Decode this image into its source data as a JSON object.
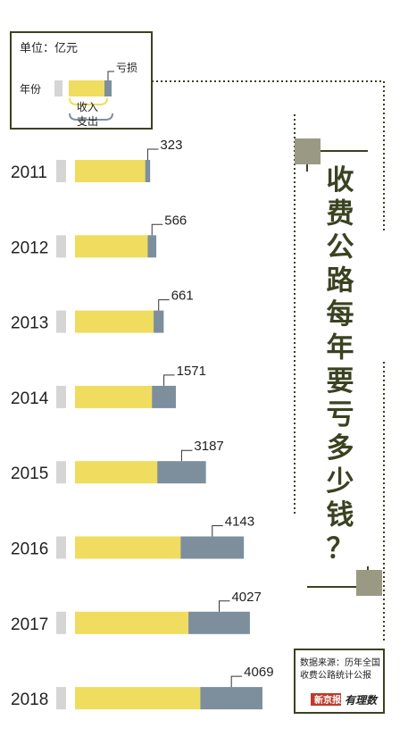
{
  "legend": {
    "unit": "单位：亿元",
    "year_label": "年份",
    "loss_label": "亏损",
    "income_label": "收入",
    "expense_label": "支出"
  },
  "title": "收费公路每年要亏多少钱？",
  "source": {
    "line1": "数据来源：历年全国",
    "line2": "收费公路统计公报",
    "brand1": "新京报",
    "brand2": "有理数"
  },
  "colors": {
    "income": "#f0dc5e",
    "loss": "#7d8f9c",
    "year_tab": "#d5d5d5",
    "frame": "#3a4220",
    "accent_square": "#9a9a84",
    "brand_red": "#c0392b"
  },
  "chart_data": {
    "type": "bar",
    "orientation": "horizontal",
    "stacked": true,
    "categories": [
      "2011",
      "2012",
      "2013",
      "2014",
      "2015",
      "2016",
      "2017",
      "2018"
    ],
    "series": [
      {
        "name": "收入",
        "values": [
          4600,
          4760,
          5150,
          5040,
          5390,
          6920,
          7430,
          8210
        ]
      },
      {
        "name": "亏损",
        "values": [
          323,
          566,
          661,
          1571,
          3187,
          4143,
          4027,
          4069
        ]
      }
    ],
    "data_labels": [
      "323",
      "566",
      "661",
      "1571",
      "3187",
      "4143",
      "4027",
      "4069"
    ],
    "title": "收费公路每年要亏多少钱？",
    "xlabel": "",
    "ylabel": "",
    "grid": false
  }
}
